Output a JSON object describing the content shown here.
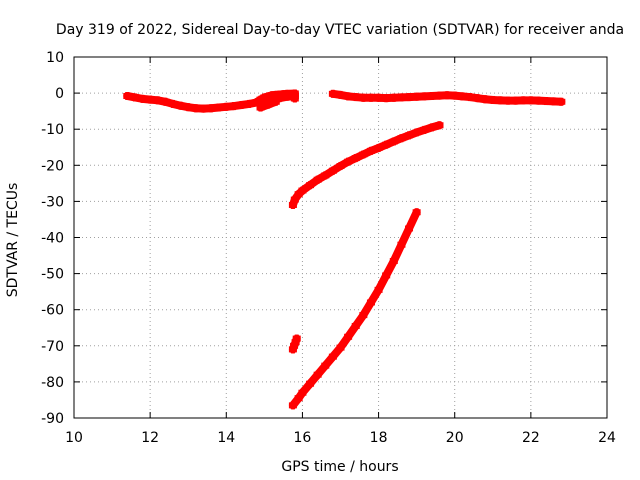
{
  "chart_data": {
    "type": "scatter",
    "title": "Day 319 of 2022, Sidereal Day-to-day VTEC variation (SDTVAR) for receiver anda",
    "xlabel": "GPS time / hours",
    "ylabel": "SDTVAR / TECUs",
    "xlim": [
      10,
      24
    ],
    "ylim": [
      -90,
      10
    ],
    "xticks": [
      10,
      12,
      14,
      16,
      18,
      20,
      22,
      24
    ],
    "yticks": [
      10,
      0,
      -10,
      -20,
      -30,
      -40,
      -50,
      -60,
      -70,
      -80,
      -90
    ],
    "grid": true,
    "series_color": "#ff0000",
    "series": [
      {
        "values": [
          [
            11.4,
            -0.8
          ],
          [
            11.6,
            -1.2
          ],
          [
            11.8,
            -1.6
          ],
          [
            12.0,
            -1.8
          ],
          [
            12.2,
            -2.0
          ],
          [
            12.4,
            -2.4
          ],
          [
            12.6,
            -3.0
          ],
          [
            12.8,
            -3.5
          ],
          [
            13.0,
            -3.9
          ],
          [
            13.2,
            -4.2
          ],
          [
            13.4,
            -4.3
          ],
          [
            13.6,
            -4.2
          ],
          [
            13.8,
            -4.0
          ],
          [
            14.0,
            -3.8
          ],
          [
            14.2,
            -3.6
          ],
          [
            14.4,
            -3.3
          ],
          [
            14.6,
            -3.0
          ],
          [
            14.8,
            -2.6
          ],
          [
            15.0,
            -2.2
          ],
          [
            15.2,
            -1.8
          ],
          [
            15.4,
            -1.4
          ],
          [
            15.6,
            -1.0
          ],
          [
            15.8,
            -0.8
          ]
        ]
      },
      {
        "values": [
          [
            14.8,
            -2.5
          ],
          [
            14.9,
            -1.8
          ],
          [
            15.0,
            -1.2
          ],
          [
            15.1,
            -0.9
          ],
          [
            15.2,
            -0.6
          ],
          [
            15.3,
            -0.5
          ],
          [
            15.4,
            -0.4
          ],
          [
            15.5,
            -0.3
          ],
          [
            15.6,
            -0.2
          ],
          [
            15.7,
            -0.2
          ],
          [
            15.8,
            -0.1
          ],
          [
            15.8,
            -1.5
          ],
          [
            14.9,
            -4.0
          ],
          [
            15.1,
            -3.2
          ],
          [
            15.3,
            -2.4
          ]
        ]
      },
      {
        "values": [
          [
            16.8,
            -0.2
          ],
          [
            17.0,
            -0.5
          ],
          [
            17.2,
            -0.9
          ],
          [
            17.4,
            -1.1
          ],
          [
            17.6,
            -1.3
          ],
          [
            17.8,
            -1.3
          ],
          [
            18.0,
            -1.3
          ],
          [
            18.2,
            -1.4
          ],
          [
            18.4,
            -1.3
          ],
          [
            18.6,
            -1.2
          ],
          [
            18.8,
            -1.1
          ],
          [
            19.0,
            -1.0
          ],
          [
            19.2,
            -0.9
          ],
          [
            19.4,
            -0.8
          ],
          [
            19.6,
            -0.7
          ],
          [
            19.8,
            -0.6
          ],
          [
            20.0,
            -0.7
          ],
          [
            20.2,
            -0.9
          ],
          [
            20.4,
            -1.1
          ],
          [
            20.6,
            -1.4
          ],
          [
            20.8,
            -1.7
          ],
          [
            21.0,
            -1.9
          ],
          [
            21.2,
            -2.0
          ],
          [
            21.4,
            -2.1
          ],
          [
            21.6,
            -2.1
          ],
          [
            21.8,
            -2.0
          ],
          [
            22.0,
            -2.0
          ],
          [
            22.2,
            -2.1
          ],
          [
            22.4,
            -2.2
          ],
          [
            22.6,
            -2.3
          ],
          [
            22.8,
            -2.4
          ]
        ]
      },
      {
        "values": [
          [
            15.75,
            -31.0
          ],
          [
            15.8,
            -29.5
          ],
          [
            15.9,
            -28.0
          ],
          [
            16.0,
            -27.0
          ],
          [
            16.2,
            -25.5
          ],
          [
            16.4,
            -24.0
          ],
          [
            16.6,
            -22.8
          ],
          [
            16.8,
            -21.5
          ],
          [
            17.0,
            -20.2
          ],
          [
            17.2,
            -19.0
          ],
          [
            17.4,
            -18.0
          ],
          [
            17.6,
            -17.0
          ],
          [
            17.8,
            -16.0
          ],
          [
            18.0,
            -15.2
          ],
          [
            18.2,
            -14.3
          ],
          [
            18.4,
            -13.4
          ],
          [
            18.6,
            -12.5
          ],
          [
            18.8,
            -11.7
          ],
          [
            19.0,
            -10.9
          ],
          [
            19.2,
            -10.2
          ],
          [
            19.4,
            -9.5
          ],
          [
            19.6,
            -8.9
          ]
        ]
      },
      {
        "values": [
          [
            15.75,
            -71.0
          ],
          [
            15.78,
            -70.0
          ],
          [
            15.82,
            -69.0
          ],
          [
            15.85,
            -68.0
          ]
        ]
      },
      {
        "values": [
          [
            15.75,
            -86.5
          ],
          [
            15.9,
            -84.5
          ],
          [
            16.0,
            -83.0
          ],
          [
            16.2,
            -80.5
          ],
          [
            16.4,
            -78.0
          ],
          [
            16.6,
            -75.5
          ],
          [
            16.8,
            -73.0
          ],
          [
            17.0,
            -70.5
          ],
          [
            17.2,
            -67.5
          ],
          [
            17.4,
            -64.5
          ],
          [
            17.6,
            -61.5
          ],
          [
            17.8,
            -58.0
          ],
          [
            18.0,
            -54.5
          ],
          [
            18.2,
            -50.5
          ],
          [
            18.4,
            -46.5
          ],
          [
            18.6,
            -42.0
          ],
          [
            18.8,
            -37.5
          ],
          [
            19.0,
            -33.0
          ]
        ]
      }
    ]
  }
}
